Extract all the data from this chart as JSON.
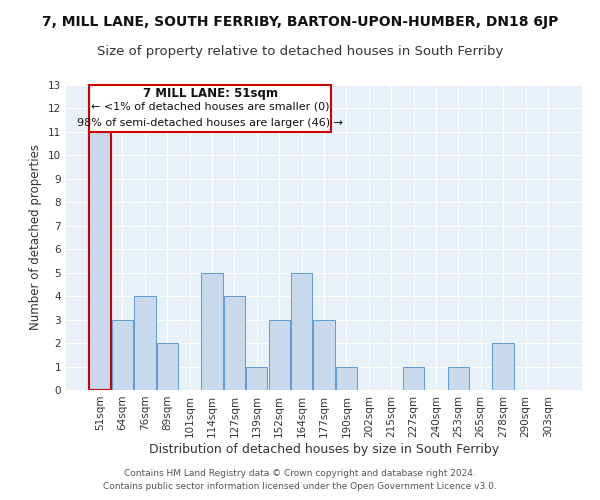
{
  "title": "7, MILL LANE, SOUTH FERRIBY, BARTON-UPON-HUMBER, DN18 6JP",
  "subtitle": "Size of property relative to detached houses in South Ferriby",
  "xlabel": "Distribution of detached houses by size in South Ferriby",
  "ylabel": "Number of detached properties",
  "categories": [
    "51sqm",
    "64sqm",
    "76sqm",
    "89sqm",
    "101sqm",
    "114sqm",
    "127sqm",
    "139sqm",
    "152sqm",
    "164sqm",
    "177sqm",
    "190sqm",
    "202sqm",
    "215sqm",
    "227sqm",
    "240sqm",
    "253sqm",
    "265sqm",
    "278sqm",
    "290sqm",
    "303sqm"
  ],
  "values": [
    11,
    3,
    4,
    2,
    0,
    5,
    4,
    1,
    3,
    5,
    3,
    1,
    0,
    0,
    1,
    0,
    1,
    0,
    2,
    0,
    0
  ],
  "bar_color": "#c9d9ec",
  "bar_edge_color": "#5b9bd5",
  "highlight_bar_index": 0,
  "highlight_bar_edge_color": "#cc0000",
  "bg_color": "#e8f0f8",
  "ylim": [
    0,
    13
  ],
  "yticks": [
    0,
    1,
    2,
    3,
    4,
    5,
    6,
    7,
    8,
    9,
    10,
    11,
    12,
    13
  ],
  "grid_color": "#ffffff",
  "annotation_text_line1": "7 MILL LANE: 51sqm",
  "annotation_text_line2": "← <1% of detached houses are smaller (0)",
  "annotation_text_line3": "98% of semi-detached houses are larger (46) →",
  "annotation_box_color": "#ffffff",
  "annotation_box_edge_color": "#cc0000",
  "footer_line1": "Contains HM Land Registry data © Crown copyright and database right 2024.",
  "footer_line2": "Contains public sector information licensed under the Open Government Licence v3.0.",
  "title_fontsize": 10,
  "subtitle_fontsize": 9.5,
  "xlabel_fontsize": 9,
  "ylabel_fontsize": 8.5,
  "tick_fontsize": 7.5,
  "annotation_fontsize1": 8.5,
  "annotation_fontsize2": 8,
  "footer_fontsize": 6.5
}
